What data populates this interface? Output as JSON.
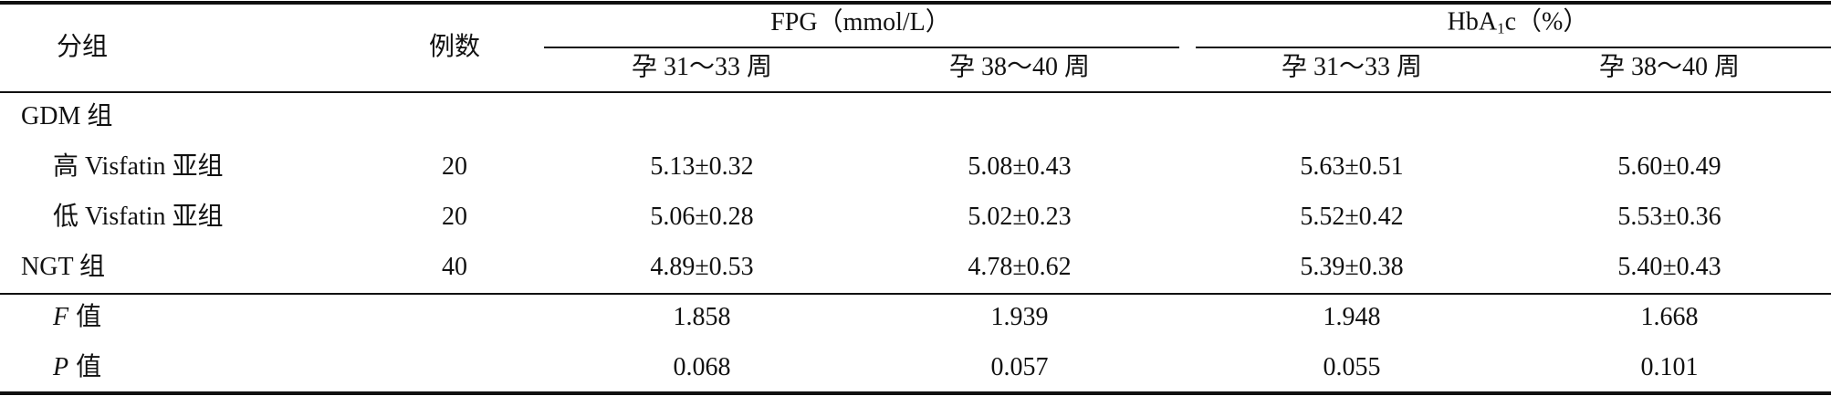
{
  "table": {
    "header": {
      "group": "分组",
      "n": "例数",
      "fpg": "FPG（mmol/L）",
      "hba1c": {
        "main": "HbA",
        "sub": "1",
        "rest": "c（%）"
      },
      "periods": [
        "孕 31～33 周",
        "孕 38～40 周",
        "孕 31～33 周",
        "孕 38～40 周"
      ]
    },
    "rows": [
      {
        "label": "GDM 组",
        "subgroups": [
          {
            "label": "高 Visfatin 亚组",
            "n": "20",
            "cells": [
              "5.13±0.32",
              "5.08±0.43",
              "5.63±0.51",
              "5.60±0.49"
            ]
          },
          {
            "label": "低 Visfatin 亚组",
            "n": "20",
            "cells": [
              "5.06±0.28",
              "5.02±0.23",
              "5.52±0.42",
              "5.53±0.36"
            ]
          }
        ]
      },
      {
        "label": "NGT 组",
        "n": "40",
        "cells": [
          "4.89±0.53",
          "4.78±0.62",
          "5.39±0.38",
          "5.40±0.43"
        ]
      }
    ],
    "stats": [
      {
        "symbol": "F",
        "label": "值",
        "cells": [
          "1.858",
          "1.939",
          "1.948",
          "1.668"
        ]
      },
      {
        "symbol": "P",
        "label": "值",
        "cells": [
          "0.068",
          "0.057",
          "0.055",
          "0.101"
        ]
      }
    ]
  }
}
